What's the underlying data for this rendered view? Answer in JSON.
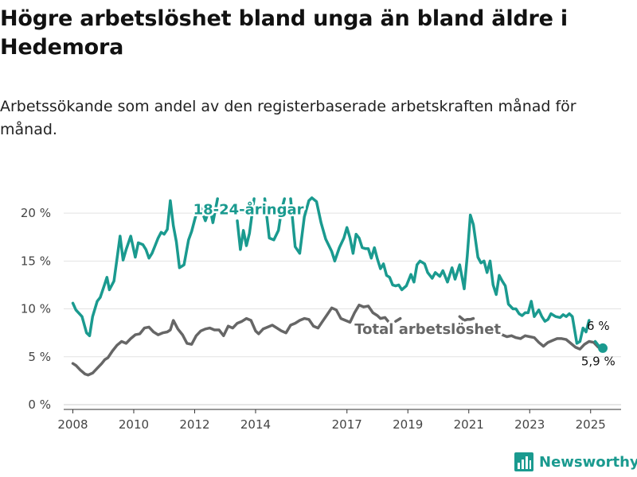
{
  "title": "Högre arbetslöshet bland unga än bland äldre i Hedemora",
  "subtitle": "Arbetssökande som andel av den registerbaserade arbetskraften månad för månad.",
  "logo_text": "Newsworthy",
  "colors": {
    "youth": "#1a9a8f",
    "total": "#666666",
    "grid": "#e2e2e2",
    "axis": "#444444"
  },
  "chart_data": {
    "type": "line",
    "ylim": [
      0,
      22
    ],
    "xlim": [
      2007.7,
      2026.0
    ],
    "y_ticks": [
      0,
      5,
      10,
      15,
      20
    ],
    "y_tick_labels": [
      "0 %",
      "5 %",
      "10 %",
      "15 %",
      "20 %"
    ],
    "x_ticks": [
      2008,
      2010,
      2012,
      2014,
      2017,
      2019,
      2021,
      2023,
      2025
    ],
    "x_tick_labels": [
      "2008",
      "2010",
      "2012",
      "2014",
      "2017",
      "2019",
      "2021",
      "2023",
      "2025"
    ],
    "grid": true,
    "series": [
      {
        "name": "18-24-åringar",
        "label_text": "18-24-åringar",
        "end_value": 6,
        "end_label": "6 %",
        "points": [
          [
            2008.0,
            10.6
          ],
          [
            2008.1,
            9.9
          ],
          [
            2008.3,
            9.2
          ],
          [
            2008.45,
            7.5
          ],
          [
            2008.55,
            7.2
          ],
          [
            2008.65,
            9.2
          ],
          [
            2008.8,
            10.8
          ],
          [
            2008.9,
            11.2
          ],
          [
            2009.05,
            12.6
          ],
          [
            2009.12,
            13.3
          ],
          [
            2009.2,
            12.0
          ],
          [
            2009.35,
            12.9
          ],
          [
            2009.45,
            15.2
          ],
          [
            2009.55,
            17.6
          ],
          [
            2009.65,
            15.1
          ],
          [
            2009.75,
            16.2
          ],
          [
            2009.9,
            17.6
          ],
          [
            2010.05,
            15.4
          ],
          [
            2010.15,
            16.9
          ],
          [
            2010.3,
            16.7
          ],
          [
            2010.4,
            16.2
          ],
          [
            2010.5,
            15.3
          ],
          [
            2010.6,
            15.8
          ],
          [
            2010.7,
            16.6
          ],
          [
            2010.8,
            17.4
          ],
          [
            2010.9,
            18.0
          ],
          [
            2011.0,
            17.8
          ],
          [
            2011.1,
            18.3
          ],
          [
            2011.2,
            21.3
          ],
          [
            2011.3,
            18.7
          ],
          [
            2011.4,
            17.0
          ],
          [
            2011.5,
            14.3
          ],
          [
            2011.65,
            14.6
          ],
          [
            2011.8,
            17.2
          ],
          [
            2011.9,
            18.1
          ],
          [
            2012.0,
            19.3
          ],
          [
            2012.15,
            21.0
          ],
          [
            2012.25,
            20.1
          ],
          [
            2012.35,
            19.2
          ],
          [
            2012.5,
            20.6
          ],
          [
            2012.6,
            19.0
          ],
          [
            2012.75,
            21.5
          ]
        ],
        "points_b": [
          [
            2013.4,
            19.2
          ],
          [
            2013.5,
            16.2
          ],
          [
            2013.6,
            18.2
          ],
          [
            2013.7,
            16.6
          ],
          [
            2013.8,
            17.9
          ],
          [
            2013.95,
            21.5
          ]
        ],
        "points_c": [
          [
            2014.3,
            21.5
          ],
          [
            2014.45,
            17.4
          ],
          [
            2014.6,
            17.2
          ],
          [
            2014.75,
            18.2
          ],
          [
            2014.85,
            20.3
          ],
          [
            2014.95,
            21.5
          ]
        ],
        "points_d": [
          [
            2015.15,
            21.5
          ],
          [
            2015.3,
            16.5
          ],
          [
            2015.45,
            15.8
          ],
          [
            2015.6,
            19.6
          ],
          [
            2015.75,
            21.3
          ],
          [
            2015.85,
            21.6
          ],
          [
            2016.0,
            21.2
          ],
          [
            2016.15,
            19.0
          ],
          [
            2016.3,
            17.3
          ],
          [
            2016.5,
            16.0
          ],
          [
            2016.6,
            15.0
          ],
          [
            2016.75,
            16.4
          ],
          [
            2016.9,
            17.4
          ],
          [
            2017.0,
            18.5
          ],
          [
            2017.1,
            17.4
          ],
          [
            2017.2,
            15.8
          ],
          [
            2017.3,
            17.8
          ],
          [
            2017.4,
            17.4
          ],
          [
            2017.5,
            16.4
          ],
          [
            2017.6,
            16.3
          ],
          [
            2017.7,
            16.3
          ],
          [
            2017.8,
            15.3
          ],
          [
            2017.9,
            16.4
          ],
          [
            2018.0,
            15.2
          ],
          [
            2018.1,
            14.2
          ],
          [
            2018.2,
            14.7
          ],
          [
            2018.3,
            13.5
          ],
          [
            2018.4,
            13.3
          ],
          [
            2018.5,
            12.5
          ],
          [
            2018.6,
            12.4
          ],
          [
            2018.7,
            12.5
          ],
          [
            2018.8,
            12.0
          ],
          [
            2018.95,
            12.4
          ],
          [
            2019.1,
            13.6
          ],
          [
            2019.2,
            12.8
          ],
          [
            2019.3,
            14.6
          ],
          [
            2019.4,
            15.0
          ],
          [
            2019.55,
            14.7
          ],
          [
            2019.65,
            13.8
          ],
          [
            2019.8,
            13.2
          ],
          [
            2019.9,
            13.8
          ],
          [
            2020.05,
            13.4
          ],
          [
            2020.15,
            14.0
          ],
          [
            2020.3,
            12.8
          ],
          [
            2020.45,
            14.3
          ],
          [
            2020.55,
            13.1
          ],
          [
            2020.7,
            14.6
          ],
          [
            2020.85,
            12.1
          ],
          [
            2020.95,
            15.5
          ],
          [
            2021.05,
            19.8
          ],
          [
            2021.15,
            18.8
          ],
          [
            2021.3,
            15.4
          ],
          [
            2021.4,
            14.8
          ],
          [
            2021.5,
            15.0
          ],
          [
            2021.6,
            13.8
          ],
          [
            2021.7,
            15.0
          ],
          [
            2021.8,
            12.5
          ],
          [
            2021.9,
            11.5
          ],
          [
            2022.0,
            13.5
          ],
          [
            2022.1,
            12.9
          ],
          [
            2022.2,
            12.4
          ],
          [
            2022.3,
            10.5
          ],
          [
            2022.45,
            10.0
          ],
          [
            2022.55,
            10.0
          ],
          [
            2022.65,
            9.5
          ],
          [
            2022.75,
            9.3
          ],
          [
            2022.85,
            9.6
          ],
          [
            2022.95,
            9.6
          ],
          [
            2023.05,
            10.8
          ],
          [
            2023.15,
            9.2
          ],
          [
            2023.3,
            9.9
          ],
          [
            2023.4,
            9.2
          ],
          [
            2023.5,
            8.7
          ],
          [
            2023.6,
            8.9
          ],
          [
            2023.7,
            9.5
          ],
          [
            2023.85,
            9.2
          ],
          [
            2024.0,
            9.1
          ],
          [
            2024.1,
            9.4
          ],
          [
            2024.2,
            9.2
          ],
          [
            2024.3,
            9.5
          ],
          [
            2024.4,
            9.2
          ],
          [
            2024.55,
            6.4
          ],
          [
            2024.65,
            6.6
          ],
          [
            2024.75,
            8.0
          ],
          [
            2024.85,
            7.6
          ],
          [
            2024.95,
            8.8
          ]
        ],
        "points_e": [
          [
            2025.15,
            6.6
          ],
          [
            2025.3,
            6.0
          ]
        ]
      },
      {
        "name": "Total arbetslöshet",
        "label_text": "Total arbetslöshet",
        "end_value": 5.9,
        "end_label": "5,9 %",
        "points": [
          [
            2008.0,
            4.3
          ],
          [
            2008.1,
            4.1
          ],
          [
            2008.25,
            3.6
          ],
          [
            2008.4,
            3.2
          ],
          [
            2008.5,
            3.1
          ],
          [
            2008.65,
            3.3
          ],
          [
            2008.8,
            3.8
          ],
          [
            2008.95,
            4.3
          ],
          [
            2009.05,
            4.7
          ],
          [
            2009.15,
            4.9
          ],
          [
            2009.3,
            5.6
          ],
          [
            2009.45,
            6.2
          ],
          [
            2009.6,
            6.6
          ],
          [
            2009.75,
            6.4
          ],
          [
            2009.9,
            6.9
          ],
          [
            2010.05,
            7.3
          ],
          [
            2010.2,
            7.4
          ],
          [
            2010.35,
            8.0
          ],
          [
            2010.5,
            8.1
          ],
          [
            2010.65,
            7.6
          ],
          [
            2010.8,
            7.3
          ],
          [
            2010.95,
            7.5
          ],
          [
            2011.1,
            7.6
          ],
          [
            2011.2,
            7.8
          ],
          [
            2011.3,
            8.8
          ],
          [
            2011.45,
            7.9
          ],
          [
            2011.6,
            7.3
          ],
          [
            2011.75,
            6.4
          ],
          [
            2011.9,
            6.3
          ],
          [
            2012.05,
            7.2
          ],
          [
            2012.2,
            7.7
          ],
          [
            2012.35,
            7.9
          ],
          [
            2012.5,
            8.0
          ],
          [
            2012.65,
            7.8
          ],
          [
            2012.8,
            7.8
          ],
          [
            2012.95,
            7.2
          ],
          [
            2013.1,
            8.2
          ],
          [
            2013.25,
            8.0
          ],
          [
            2013.4,
            8.5
          ],
          [
            2013.55,
            8.7
          ],
          [
            2013.7,
            9.0
          ],
          [
            2013.85,
            8.8
          ],
          [
            2014.0,
            7.7
          ],
          [
            2014.1,
            7.4
          ],
          [
            2014.25,
            7.9
          ],
          [
            2014.4,
            8.1
          ],
          [
            2014.55,
            8.3
          ],
          [
            2014.7,
            8.0
          ],
          [
            2014.85,
            7.7
          ],
          [
            2015.0,
            7.5
          ],
          [
            2015.15,
            8.3
          ],
          [
            2015.3,
            8.5
          ],
          [
            2015.45,
            8.8
          ],
          [
            2015.6,
            9.0
          ],
          [
            2015.75,
            8.9
          ],
          [
            2015.9,
            8.2
          ],
          [
            2016.05,
            8.0
          ],
          [
            2016.2,
            8.7
          ],
          [
            2016.35,
            9.4
          ],
          [
            2016.5,
            10.1
          ],
          [
            2016.65,
            9.9
          ],
          [
            2016.8,
            9.0
          ],
          [
            2016.95,
            8.8
          ],
          [
            2017.1,
            8.6
          ],
          [
            2017.25,
            9.6
          ],
          [
            2017.4,
            10.4
          ],
          [
            2017.55,
            10.2
          ],
          [
            2017.7,
            10.3
          ],
          [
            2017.85,
            9.6
          ],
          [
            2018.0,
            9.3
          ],
          [
            2018.1,
            9.0
          ],
          [
            2018.25,
            9.1
          ],
          [
            2018.35,
            8.7
          ]
        ],
        "points_b": [
          [
            2018.6,
            8.7
          ],
          [
            2018.75,
            9.0
          ]
        ]
      }
    ],
    "total_tail": [
      [
        2020.7,
        9.2
      ],
      [
        2020.85,
        8.8
      ],
      [
        2020.95,
        8.9
      ],
      [
        2021.05,
        8.9
      ],
      [
        2021.15,
        9.0
      ]
    ],
    "total_tail2": [
      [
        2022.1,
        7.3
      ],
      [
        2022.25,
        7.1
      ],
      [
        2022.4,
        7.2
      ],
      [
        2022.55,
        7.0
      ],
      [
        2022.7,
        6.9
      ],
      [
        2022.85,
        7.2
      ],
      [
        2023.0,
        7.1
      ],
      [
        2023.15,
        7.0
      ],
      [
        2023.3,
        6.5
      ],
      [
        2023.45,
        6.1
      ],
      [
        2023.6,
        6.5
      ],
      [
        2023.75,
        6.7
      ],
      [
        2023.9,
        6.9
      ],
      [
        2024.05,
        6.9
      ],
      [
        2024.2,
        6.8
      ],
      [
        2024.35,
        6.4
      ],
      [
        2024.5,
        6.0
      ],
      [
        2024.65,
        5.8
      ],
      [
        2024.8,
        6.3
      ],
      [
        2024.95,
        6.6
      ],
      [
        2025.1,
        6.5
      ],
      [
        2025.25,
        6.0
      ],
      [
        2025.4,
        5.9
      ]
    ]
  }
}
